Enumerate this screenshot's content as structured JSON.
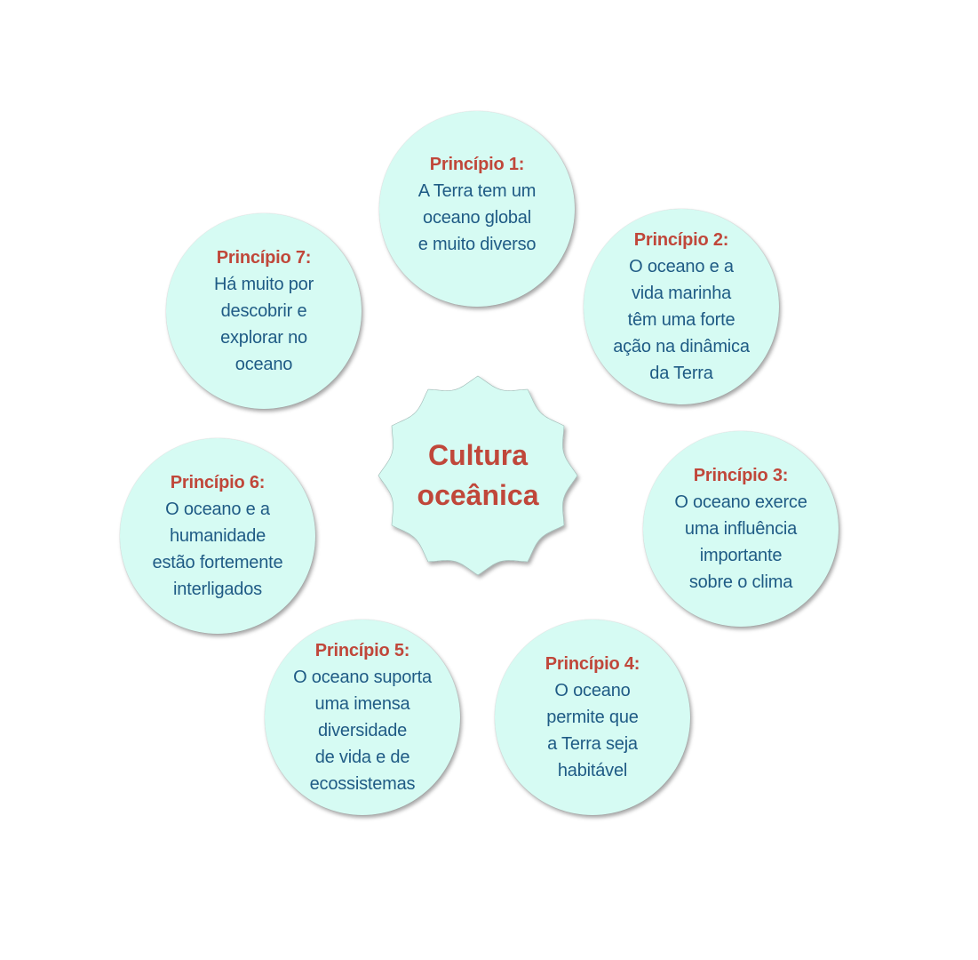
{
  "center": {
    "lines": [
      "Cultura",
      "oceânica"
    ]
  },
  "principles": [
    {
      "title": "Princípio 1:",
      "lines": [
        "A Terra tem um",
        "oceano global",
        "e muito diverso"
      ]
    },
    {
      "title": "Princípio 2:",
      "lines": [
        "O oceano e a",
        "vida marinha",
        "têm uma forte",
        "ação na dinâmica",
        "da Terra"
      ]
    },
    {
      "title": "Princípio 3:",
      "lines": [
        "O oceano exerce",
        "uma influência",
        "importante",
        "sobre o clima"
      ]
    },
    {
      "title": "Princípio 4:",
      "lines": [
        "O oceano",
        "permite que",
        "a Terra seja",
        "habitável"
      ]
    },
    {
      "title": "Princípio 5:",
      "lines": [
        "O oceano suporta",
        "uma imensa",
        "diversidade",
        "de vida e de",
        "ecossistemas"
      ]
    },
    {
      "title": "Princípio 6:",
      "lines": [
        "O oceano e a",
        "humanidade",
        "estão fortemente",
        "interligados"
      ]
    },
    {
      "title": "Princípio 7:",
      "lines": [
        "Há muito por",
        "descobrir e",
        "explorar no",
        "oceano"
      ]
    }
  ],
  "colors": {
    "bubble_fill": "#d6fbf3",
    "title_text": "#c0473a",
    "body_text": "#1f5b85"
  }
}
